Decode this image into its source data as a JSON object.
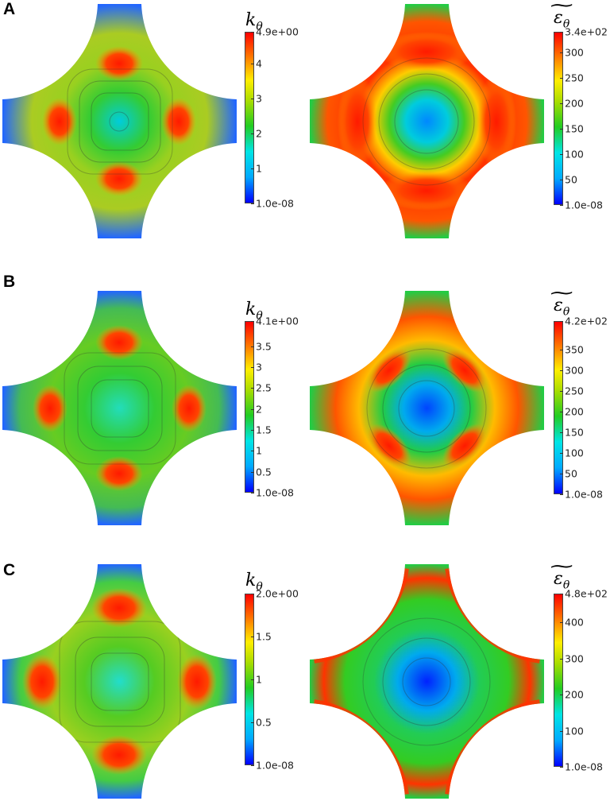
{
  "rows": [
    {
      "label": "A",
      "left": {
        "symbol": "k",
        "sub": "θ",
        "tilde": false,
        "ticks": [
          "4.9e+00",
          "4",
          "3",
          "2",
          "1",
          "1.0e-08"
        ],
        "tick_values": [
          4.9,
          4,
          3,
          2,
          1,
          0
        ],
        "max": 4.9
      },
      "right": {
        "symbol": "ε",
        "sub": "θ",
        "tilde": true,
        "ticks": [
          "3.4e+02",
          "300",
          "250",
          "200",
          "150",
          "100",
          "50",
          "1.0e-08"
        ],
        "tick_values": [
          340,
          300,
          250,
          200,
          150,
          100,
          50,
          0
        ],
        "max": 340
      }
    },
    {
      "label": "B",
      "left": {
        "symbol": "k",
        "sub": "θ",
        "tilde": false,
        "ticks": [
          "4.1e+00",
          "3.5",
          "3",
          "2.5",
          "2",
          "1.5",
          "1",
          "0.5",
          "1.0e-08"
        ],
        "tick_values": [
          4.1,
          3.5,
          3,
          2.5,
          2,
          1.5,
          1,
          0.5,
          0
        ],
        "max": 4.1
      },
      "right": {
        "symbol": "ε",
        "sub": "θ",
        "tilde": true,
        "ticks": [
          "4.2e+02",
          "350",
          "300",
          "250",
          "200",
          "150",
          "100",
          "50",
          "1.0e-08"
        ],
        "tick_values": [
          420,
          350,
          300,
          250,
          200,
          150,
          100,
          50,
          0
        ],
        "max": 420
      }
    },
    {
      "label": "C",
      "left": {
        "symbol": "k",
        "sub": "θ",
        "tilde": false,
        "ticks": [
          "2.0e+00",
          "1.5",
          "1",
          "0.5",
          "1.0e-08"
        ],
        "tick_values": [
          2,
          1.5,
          1,
          0.5,
          0
        ],
        "max": 2
      },
      "right": {
        "symbol": "ε",
        "sub": "θ",
        "tilde": true,
        "ticks": [
          "4.8e+02",
          "400",
          "300",
          "200",
          "100",
          "1.0e-08"
        ],
        "tick_values": [
          480,
          400,
          300,
          200,
          100,
          0
        ],
        "max": 480
      }
    }
  ],
  "colormap": [
    "#0000ff",
    "#00aaff",
    "#00e5e5",
    "#22cc22",
    "#aadd00",
    "#ffee00",
    "#ff7700",
    "#ff0000"
  ]
}
